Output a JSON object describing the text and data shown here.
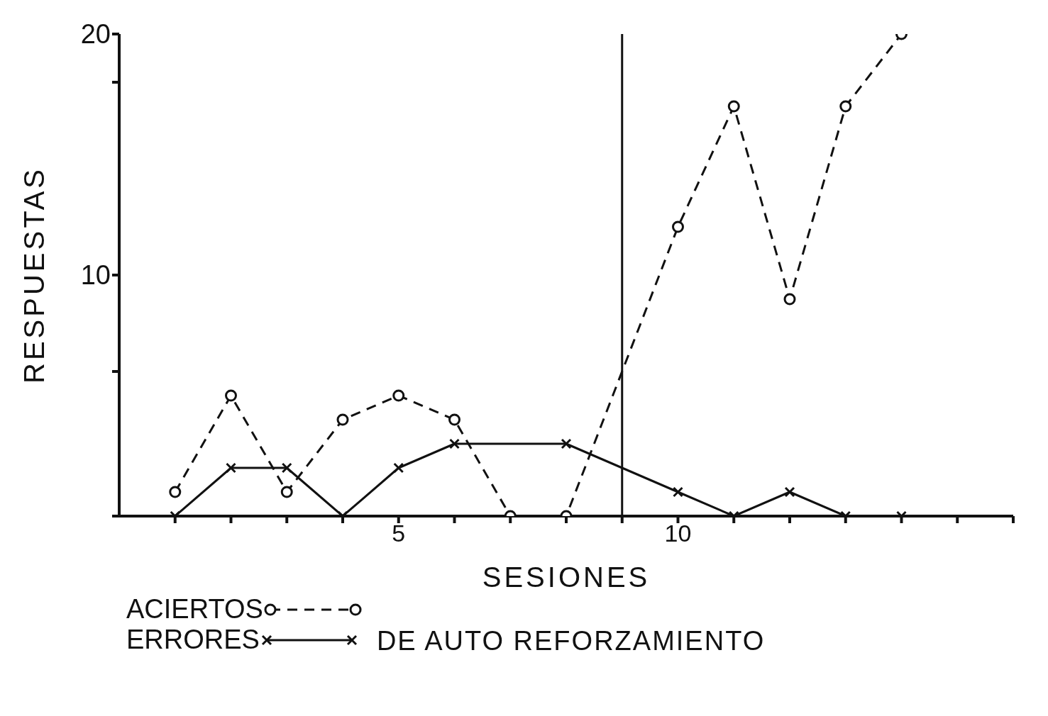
{
  "chart_data": {
    "type": "line",
    "xlabel": "SESIONES",
    "ylabel": "RESPUESTAS",
    "annotations": [
      "DE AUTO REFORZAMIENTO"
    ],
    "x": [
      1,
      2,
      3,
      4,
      5,
      6,
      7,
      8,
      10,
      11,
      12,
      13,
      14
    ],
    "xlim": [
      0,
      16
    ],
    "xticks": [
      {
        "value": 1,
        "label": null
      },
      {
        "value": 2,
        "label": null
      },
      {
        "value": 3,
        "label": null
      },
      {
        "value": 4,
        "label": null
      },
      5,
      {
        "value": 6,
        "label": null
      },
      {
        "value": 7,
        "label": null
      },
      {
        "value": 8,
        "label": null
      },
      {
        "value": 9,
        "label": null
      },
      10,
      {
        "value": 11,
        "label": null
      },
      {
        "value": 12,
        "label": null
      },
      {
        "value": 13,
        "label": null
      },
      {
        "value": 14,
        "label": null
      },
      {
        "value": 15,
        "label": null
      },
      {
        "value": 16,
        "label": null
      }
    ],
    "ylim": [
      0,
      20
    ],
    "yticks": [
      {
        "value": 0,
        "label": null
      },
      {
        "value": 6,
        "label": null
      },
      10,
      {
        "value": 18,
        "label": null
      },
      20
    ],
    "series": [
      {
        "name": "ACIERTOS",
        "color": "#111111",
        "marker": "circle",
        "line_style": "dashed",
        "values": [
          1,
          5,
          1,
          4,
          5,
          4,
          0,
          0,
          12,
          17,
          9,
          17,
          20
        ]
      },
      {
        "name": "ERRORES",
        "color": "#111111",
        "marker": "cross",
        "line_style": "solid",
        "values": [
          0,
          2,
          2,
          0,
          2,
          3,
          null,
          3,
          1,
          0,
          1,
          0,
          0
        ]
      }
    ],
    "ref_lines": [
      {
        "axis": "x",
        "value": 9,
        "color": "#111111",
        "line_style": "solid"
      }
    ],
    "grid": false,
    "legend": "bottom left"
  }
}
